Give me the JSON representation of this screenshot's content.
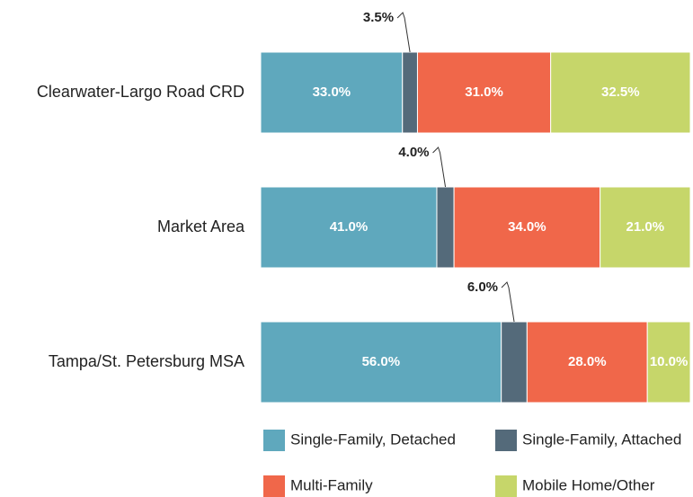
{
  "chart_data": {
    "type": "stacked_bar_horizontal",
    "categories": [
      "Clearwater-Largo Road CRD",
      "Market Area",
      "Tampa/St. Petersburg MSA"
    ],
    "xlim": [
      0,
      100
    ],
    "series": [
      {
        "name": "Single-Family, Detached",
        "color": "#5fa8bd",
        "values": [
          33,
          41,
          56
        ],
        "value_labels": [
          "33.0%",
          "41.0%",
          "56.0%"
        ]
      },
      {
        "name": "Single-Family, Attached",
        "color": "#546a7a",
        "values": [
          3.5,
          4,
          6
        ],
        "value_labels": [
          "3.5%",
          "4.0%",
          "6.0%"
        ]
      },
      {
        "name": "Multi-Family",
        "color": "#f0674a",
        "values": [
          31,
          34,
          28
        ],
        "value_labels": [
          "31.0%",
          "34.0%",
          "28.0%"
        ]
      },
      {
        "name": "Mobile Home/Other",
        "color": "#c6d66a",
        "values": [
          32.5,
          21,
          10
        ],
        "value_labels": [
          "32.5%",
          "21.0%",
          "10.0%"
        ]
      }
    ]
  }
}
